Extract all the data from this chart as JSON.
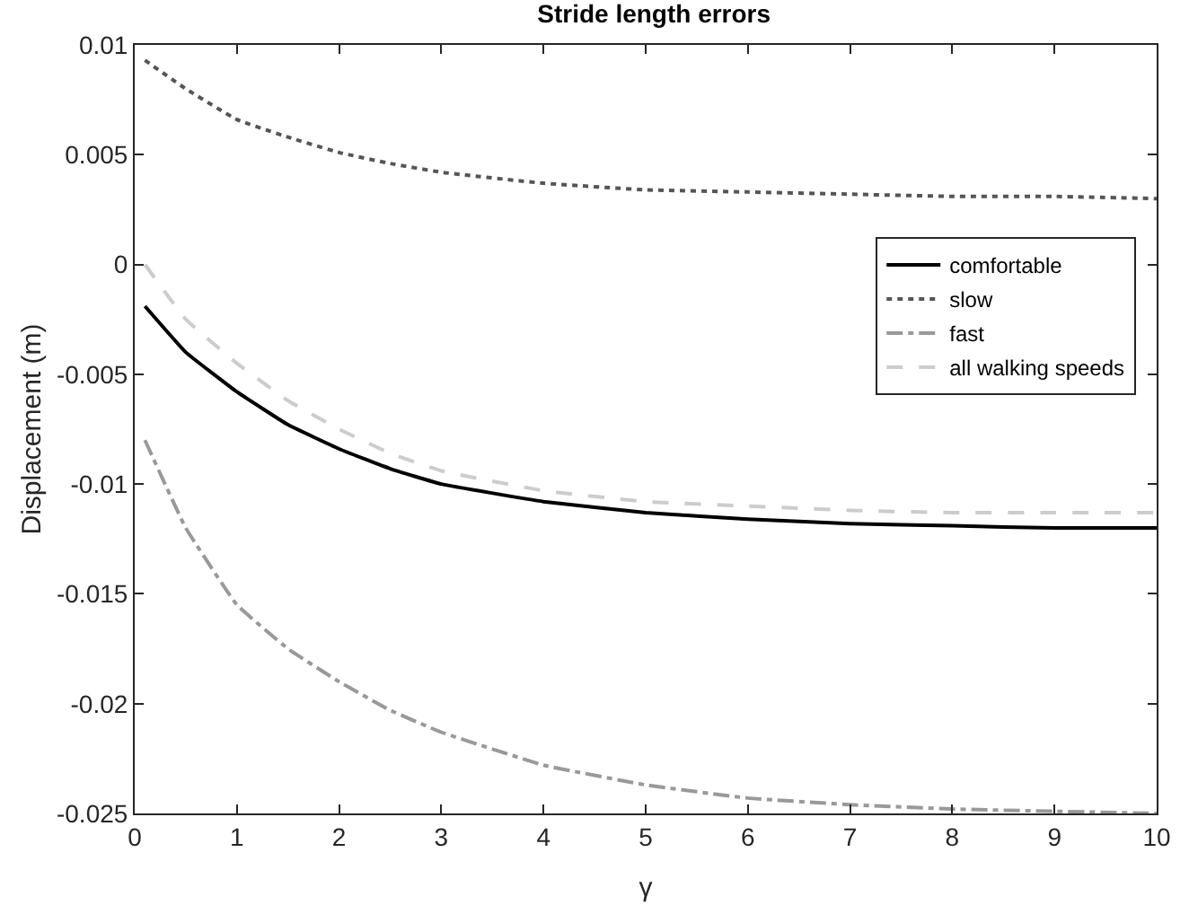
{
  "chart_data": {
    "type": "line",
    "title": "Stride length errors",
    "xlabel": "γ",
    "ylabel": "Displacement (m)",
    "x": [
      0.1,
      0.5,
      1,
      1.5,
      2,
      2.5,
      3,
      4,
      5,
      6,
      7,
      8,
      9,
      10
    ],
    "series": [
      {
        "name": "comfortable",
        "color": "#000000",
        "line_style": "solid",
        "values": [
          -0.0019,
          -0.004,
          -0.0058,
          -0.0073,
          -0.0084,
          -0.0093,
          -0.01,
          -0.0108,
          -0.0113,
          -0.0116,
          -0.0118,
          -0.0119,
          -0.012,
          -0.012
        ]
      },
      {
        "name": "slow",
        "color": "#555555",
        "line_style": "dotted",
        "values": [
          0.0093,
          0.008,
          0.0066,
          0.0058,
          0.0051,
          0.0046,
          0.0042,
          0.0037,
          0.0034,
          0.0033,
          0.0032,
          0.0031,
          0.0031,
          0.003
        ]
      },
      {
        "name": "fast",
        "color": "#999999",
        "line_style": "dashdot",
        "values": [
          -0.008,
          -0.012,
          -0.0155,
          -0.0175,
          -0.019,
          -0.0203,
          -0.0213,
          -0.0228,
          -0.0237,
          -0.0243,
          -0.0246,
          -0.0248,
          -0.0249,
          -0.025
        ]
      },
      {
        "name": "all walking speeds",
        "color": "#cccccc",
        "line_style": "dashed",
        "values": [
          0.0,
          -0.0025,
          -0.0045,
          -0.0062,
          -0.0075,
          -0.0086,
          -0.0094,
          -0.0103,
          -0.0108,
          -0.011,
          -0.0112,
          -0.0113,
          -0.0113,
          -0.0113
        ]
      }
    ],
    "xlim": [
      0,
      10
    ],
    "xticks": [
      0,
      1,
      2,
      3,
      4,
      5,
      6,
      7,
      8,
      9,
      10
    ],
    "ylim": [
      -0.025,
      0.01
    ],
    "yticks": [
      -0.025,
      -0.02,
      -0.015,
      -0.01,
      -0.005,
      0,
      0.005,
      0.01
    ],
    "legend": "top right"
  }
}
